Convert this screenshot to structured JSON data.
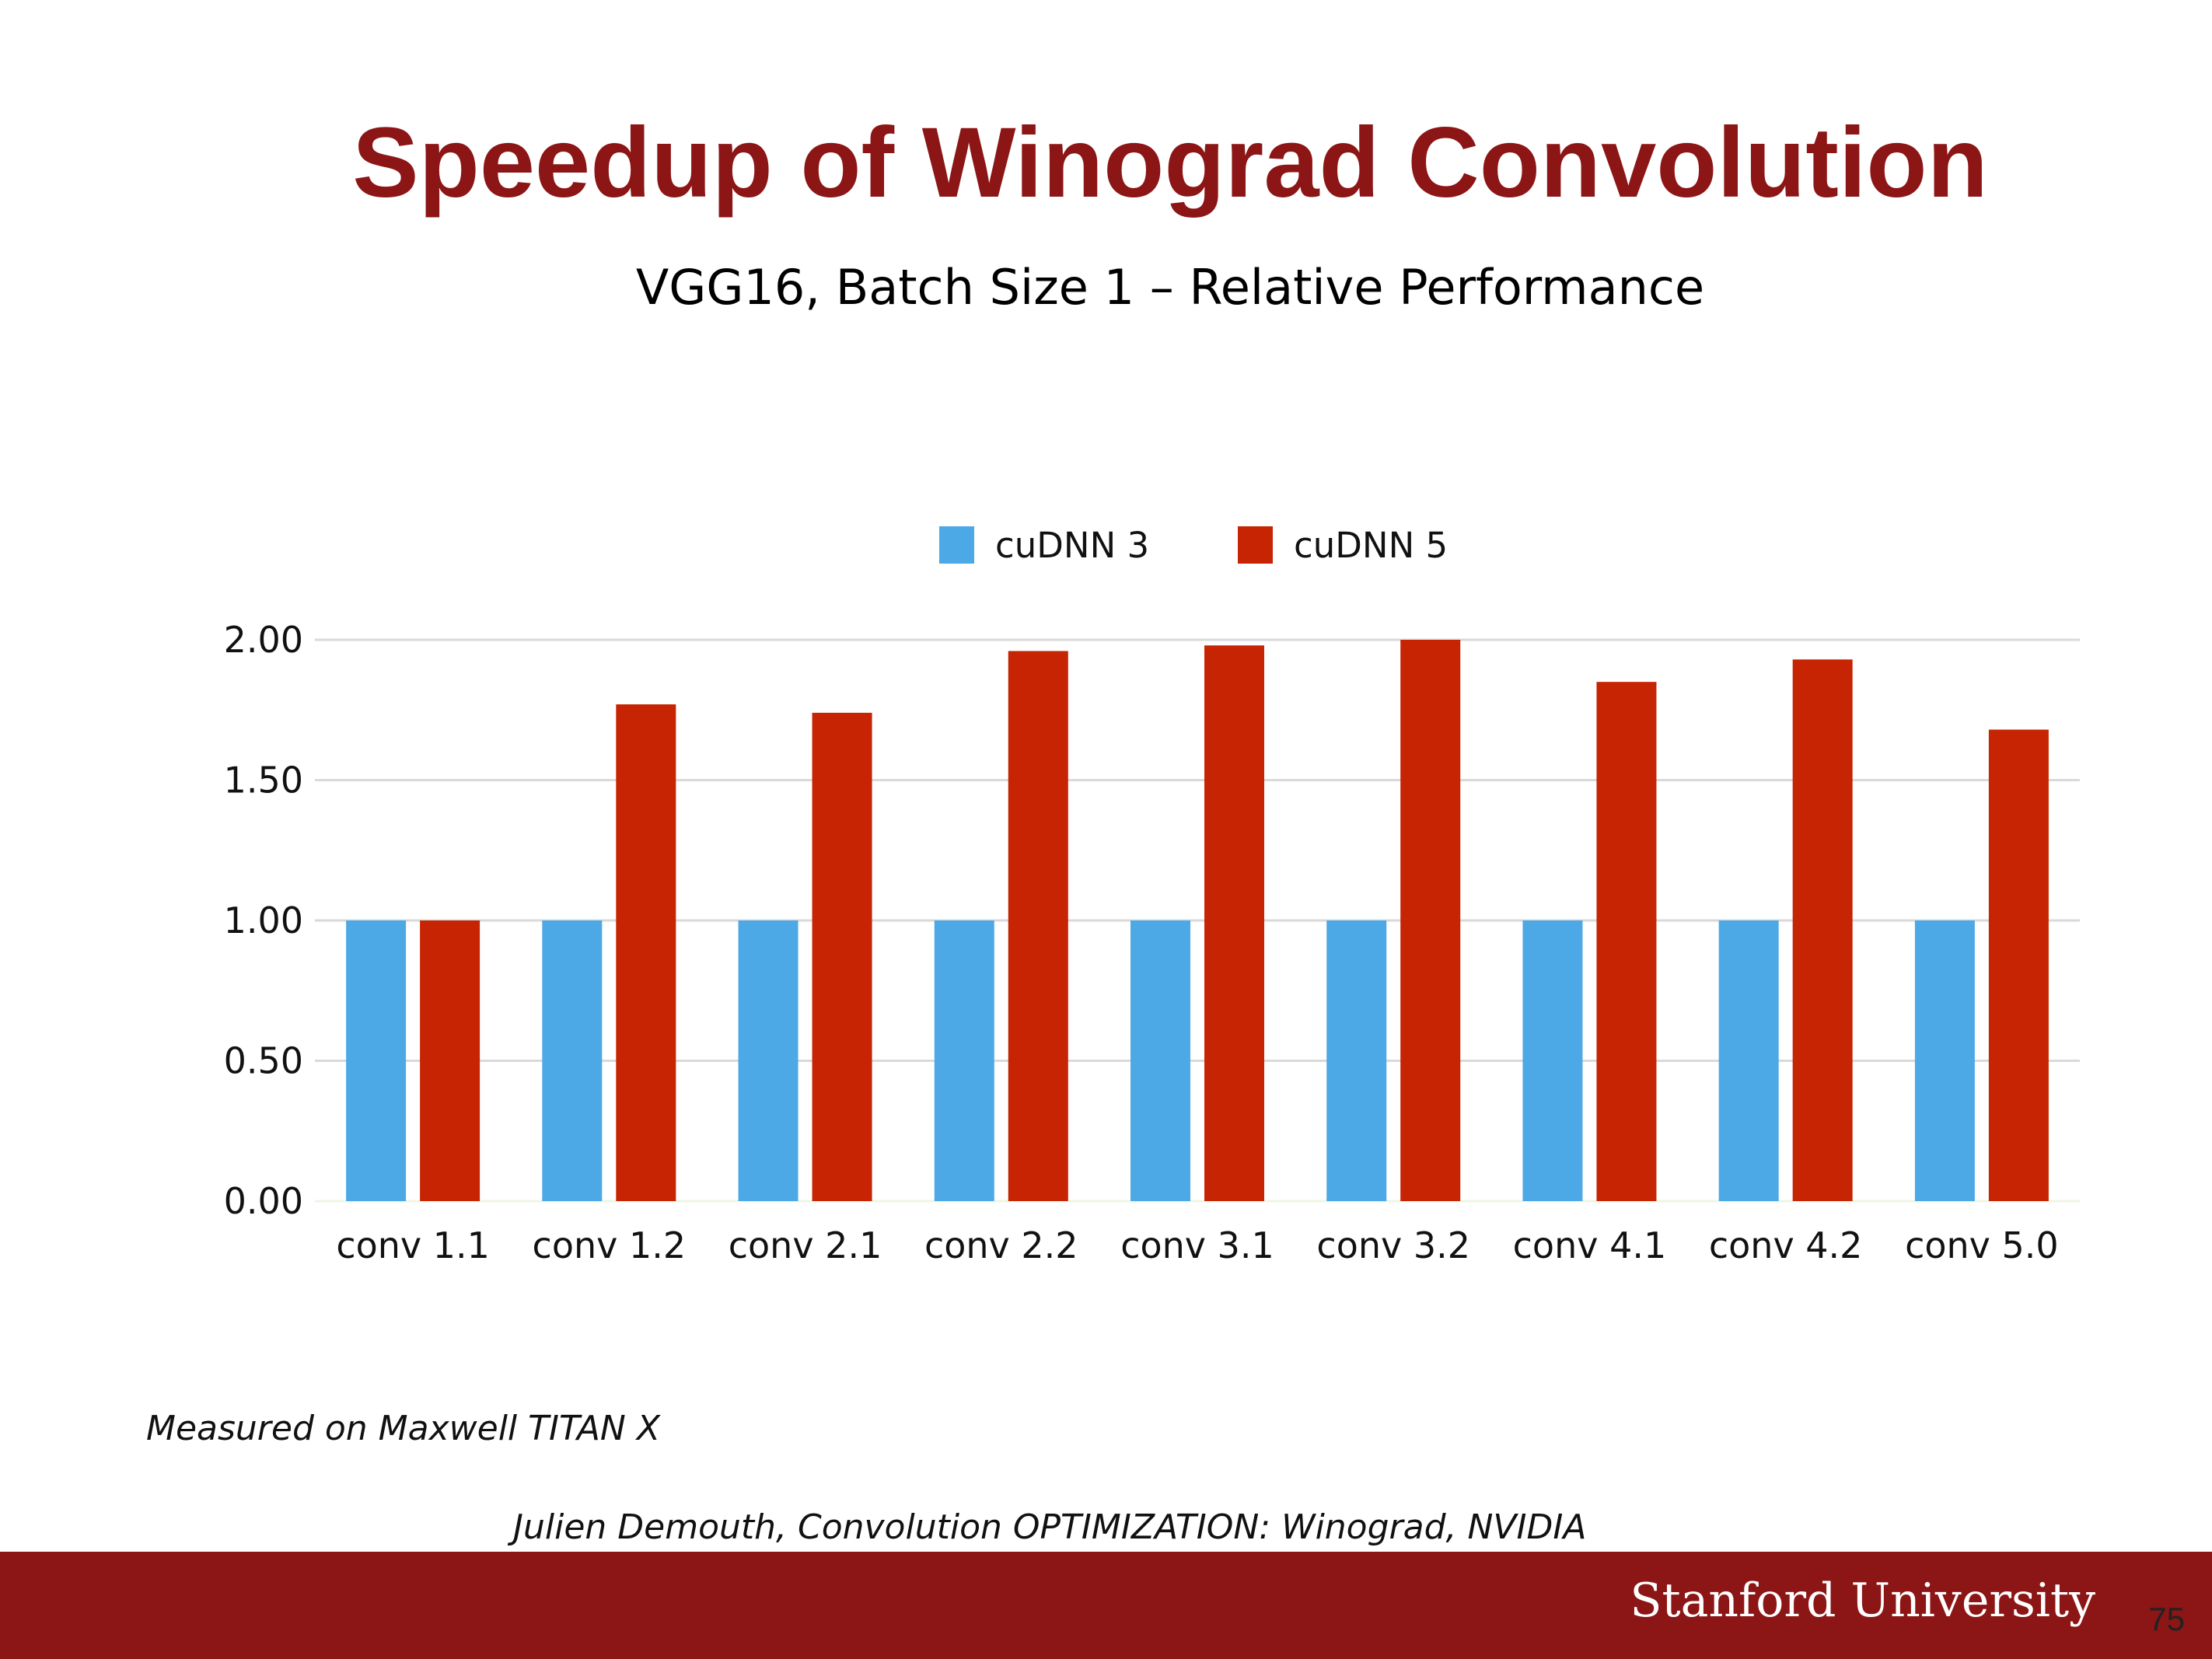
{
  "slide": {
    "title": "Speedup of Winograd Convolution",
    "note": "Measured on Maxwell TITAN X",
    "citation": "Julien Demouth, Convolution OPTIMIZATION: Winograd, NVIDIA",
    "footer": "Stanford University",
    "page_number": "75"
  },
  "chart_data": {
    "type": "bar",
    "title": "VGG16, Batch Size 1 – Relative Performance",
    "xlabel": "",
    "ylabel": "",
    "categories": [
      "conv 1.1",
      "conv 1.2",
      "conv 2.1",
      "conv 2.2",
      "conv 3.1",
      "conv 3.2",
      "conv 4.1",
      "conv 4.2",
      "conv 5.0"
    ],
    "series": [
      {
        "name": "cuDNN 3",
        "color": "#4da8e6",
        "values": [
          1.0,
          1.0,
          1.0,
          1.0,
          1.0,
          1.0,
          1.0,
          1.0,
          1.0
        ]
      },
      {
        "name": "cuDNN 5",
        "color": "#c62402",
        "values": [
          1.0,
          1.77,
          1.74,
          1.96,
          1.98,
          2.0,
          1.85,
          1.93,
          1.68
        ]
      }
    ],
    "ylim": [
      0,
      2
    ],
    "yticks": [
      "0.00",
      "0.50",
      "1.00",
      "1.50",
      "2.00"
    ],
    "grid": true,
    "legend_position": "top-center"
  }
}
